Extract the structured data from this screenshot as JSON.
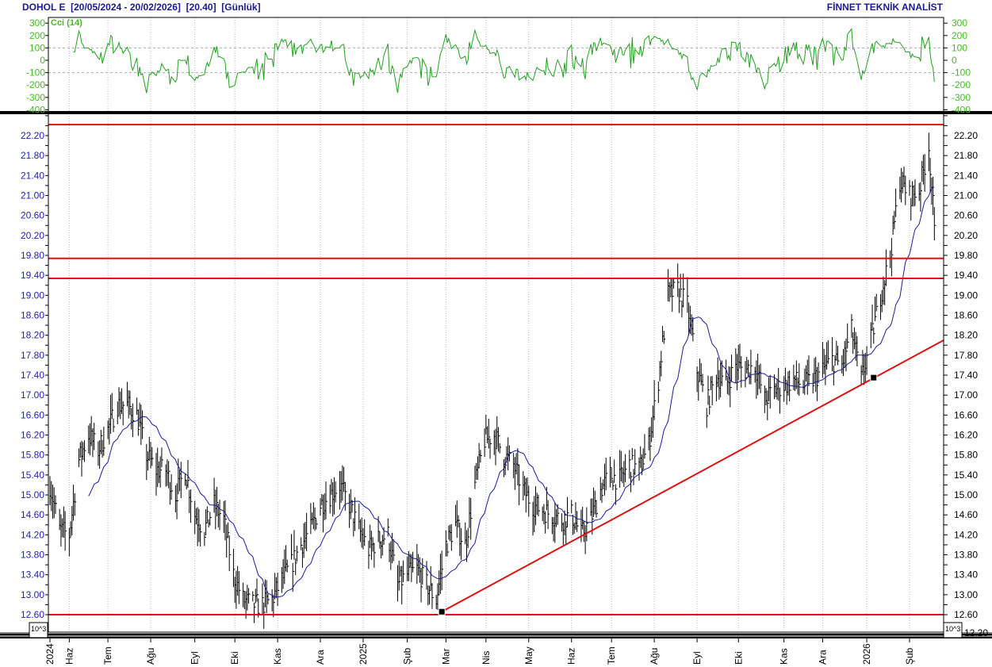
{
  "header": {
    "symbol": "DOHOL E",
    "range": "[20/05/2024 - 20/02/2026]",
    "last": "[20.40]",
    "period": "[Günlük]",
    "brand": "FİNNET TEKNİK ANALİST"
  },
  "colors": {
    "title": "#1a1a8c",
    "price_bars": "#000000",
    "ma": "#1a1aa0",
    "cci": "#22a022",
    "support_lines": "#e01010",
    "left_axis": "#2323b0",
    "cci_axis": "#44bb22"
  },
  "chart_data": [
    {
      "type": "line",
      "title": "Cci (14)",
      "ylim": [
        -400,
        300
      ],
      "yticks": [
        "300",
        "200",
        "100",
        "0",
        "-100",
        "-200",
        "-300",
        "-400"
      ],
      "reference_lines": [
        100,
        -100
      ],
      "source": "computed CCI(14) of price series"
    },
    {
      "type": "ohlc",
      "xlim": [
        "2024-05-20",
        "2026-02-20"
      ],
      "ylim": [
        12.2,
        22.6
      ],
      "yticks": [
        "12.60",
        "13.00",
        "13.40",
        "13.80",
        "14.20",
        "14.60",
        "15.00",
        "15.40",
        "15.80",
        "16.20",
        "16.60",
        "17.00",
        "17.40",
        "17.80",
        "18.20",
        "18.60",
        "19.00",
        "19.40",
        "19.80",
        "20.20",
        "20.60",
        "21.00",
        "21.40",
        "21.80",
        "22.20"
      ],
      "ytick_hidden": "12.20",
      "scale_label": "10^3",
      "xticks": [
        {
          "date": "2024-05-20",
          "label": "2024"
        },
        {
          "date": "2024-06-03",
          "label": "Haz"
        },
        {
          "date": "2024-07-01",
          "label": "Tem"
        },
        {
          "date": "2024-08-01",
          "label": "Ağu"
        },
        {
          "date": "2024-09-02",
          "label": "Eyl"
        },
        {
          "date": "2024-10-01",
          "label": "Eki"
        },
        {
          "date": "2024-11-01",
          "label": "Kas"
        },
        {
          "date": "2024-12-02",
          "label": "Ara"
        },
        {
          "date": "2025-01-02",
          "label": "2025"
        },
        {
          "date": "2025-02-03",
          "label": "Şub"
        },
        {
          "date": "2025-03-03",
          "label": "Mar"
        },
        {
          "date": "2025-04-01",
          "label": "Nis"
        },
        {
          "date": "2025-05-02",
          "label": "May"
        },
        {
          "date": "2025-06-02",
          "label": "Haz"
        },
        {
          "date": "2025-07-01",
          "label": "Tem"
        },
        {
          "date": "2025-08-01",
          "label": "Ağu"
        },
        {
          "date": "2025-09-01",
          "label": "Eyl"
        },
        {
          "date": "2025-10-01",
          "label": "Eki"
        },
        {
          "date": "2025-11-03",
          "label": "Kas"
        },
        {
          "date": "2025-12-01",
          "label": "Ara"
        },
        {
          "date": "2026-01-02",
          "label": "2026"
        },
        {
          "date": "2026-02-02",
          "label": "Şub"
        }
      ],
      "weekly_dates": [
        "2024-05-20",
        "2024-05-27",
        "2024-06-03",
        "2024-06-10",
        "2024-06-17",
        "2024-06-24",
        "2024-07-01",
        "2024-07-08",
        "2024-07-15",
        "2024-07-22",
        "2024-07-29",
        "2024-08-05",
        "2024-08-12",
        "2024-08-19",
        "2024-08-26",
        "2024-09-02",
        "2024-09-09",
        "2024-09-16",
        "2024-09-23",
        "2024-09-30",
        "2024-10-07",
        "2024-10-14",
        "2024-10-21",
        "2024-10-28",
        "2024-11-04",
        "2024-11-11",
        "2024-11-18",
        "2024-11-25",
        "2024-12-02",
        "2024-12-09",
        "2024-12-16",
        "2024-12-23",
        "2024-12-30",
        "2025-01-06",
        "2025-01-13",
        "2025-01-20",
        "2025-01-27",
        "2025-02-03",
        "2025-02-10",
        "2025-02-17",
        "2025-02-24",
        "2025-03-03",
        "2025-03-10",
        "2025-03-17",
        "2025-03-24",
        "2025-03-31",
        "2025-04-07",
        "2025-04-14",
        "2025-04-21",
        "2025-04-28",
        "2025-05-05",
        "2025-05-12",
        "2025-05-19",
        "2025-05-26",
        "2025-06-02",
        "2025-06-09",
        "2025-06-16",
        "2025-06-23",
        "2025-06-30",
        "2025-07-07",
        "2025-07-14",
        "2025-07-21",
        "2025-07-28",
        "2025-08-04",
        "2025-08-11",
        "2025-08-18",
        "2025-08-25",
        "2025-09-01",
        "2025-09-08",
        "2025-09-15",
        "2025-09-22",
        "2025-09-29",
        "2025-10-06",
        "2025-10-13",
        "2025-10-20",
        "2025-10-27",
        "2025-11-03",
        "2025-11-10",
        "2025-11-17",
        "2025-11-24",
        "2025-12-01",
        "2025-12-08",
        "2025-12-15",
        "2025-12-22",
        "2025-12-29",
        "2026-01-05",
        "2026-01-12",
        "2026-01-19",
        "2026-01-26",
        "2026-02-02",
        "2026-02-09",
        "2026-02-16",
        "2026-02-20"
      ],
      "weekly_close": [
        15.2,
        14.3,
        14.2,
        15.7,
        16.2,
        15.9,
        16.3,
        16.8,
        16.8,
        16.6,
        15.8,
        15.5,
        15.5,
        15.0,
        15.5,
        14.6,
        14.3,
        14.8,
        14.5,
        13.4,
        12.9,
        12.8,
        12.8,
        12.9,
        13.3,
        13.6,
        14.0,
        14.3,
        14.8,
        15.0,
        15.2,
        14.8,
        14.3,
        13.9,
        14.1,
        14.2,
        13.2,
        13.4,
        13.5,
        13.2,
        12.9,
        14.0,
        14.4,
        14.0,
        15.2,
        16.1,
        16.2,
        15.8,
        15.6,
        15.1,
        14.8,
        14.7,
        14.6,
        14.5,
        14.6,
        14.2,
        14.5,
        15.1,
        15.4,
        15.3,
        15.6,
        15.5,
        16.0,
        17.3,
        19.0,
        19.1,
        18.8,
        17.5,
        16.8,
        17.4,
        17.2,
        17.6,
        17.5,
        17.6,
        16.9,
        17.1,
        17.2,
        17.3,
        17.2,
        17.3,
        17.5,
        17.7,
        17.6,
        18.3,
        17.3,
        18.1,
        19.0,
        19.8,
        21.3,
        21.0,
        21.1,
        22.0,
        20.4
      ],
      "moving_average": {
        "type": "simple",
        "period": 21
      },
      "horizontal_lines": [
        22.42,
        19.74,
        19.34,
        12.6
      ],
      "trend_line": {
        "from": {
          "date": "2025-02-28",
          "price": 12.66
        },
        "anchor": {
          "date": "2026-01-07",
          "price": 17.35
        },
        "to": {
          "date": "2026-02-27",
          "price": 18.1
        }
      }
    }
  ]
}
